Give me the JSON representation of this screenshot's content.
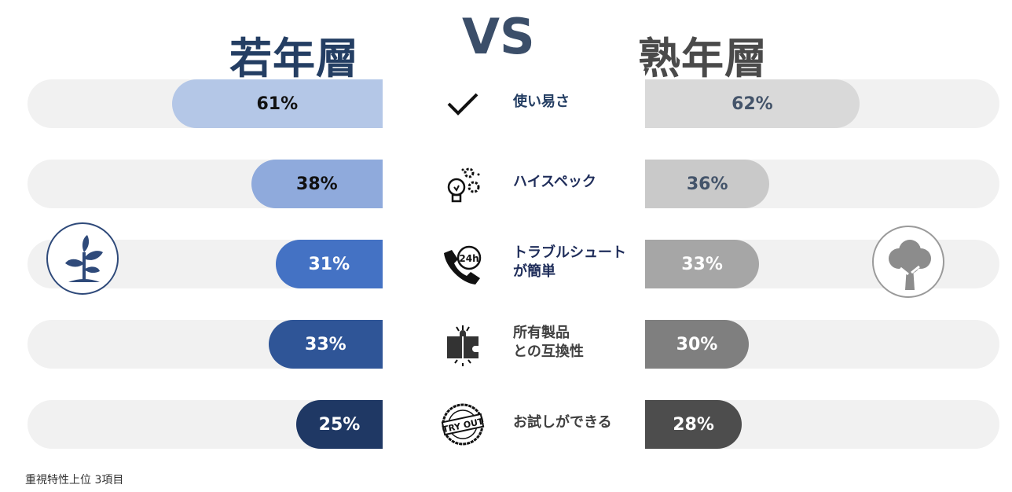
{
  "titles": {
    "young": "若年層",
    "vs": "VS",
    "senior": "熟年層"
  },
  "footnote": "重視特性上位 3項目",
  "chart_data": {
    "type": "bar",
    "categories": [
      "使い易さ",
      "ハイスペック",
      "トラブルシュート\nが簡単",
      "所有製品\nとの互換性",
      "お試しができる"
    ],
    "series": [
      {
        "name": "若年層",
        "values": [
          61,
          38,
          31,
          33,
          25
        ],
        "labels": [
          "61%",
          "38%",
          "31%",
          "33%",
          "25%"
        ],
        "colors": [
          "#b4c7e7",
          "#8faadc",
          "#4472c4",
          "#2f5597",
          "#1f3864"
        ],
        "text_colors": [
          "#111111",
          "#111111",
          "#ffffff",
          "#ffffff",
          "#ffffff"
        ]
      },
      {
        "name": "熟年層",
        "values": [
          62,
          36,
          33,
          30,
          28
        ],
        "labels": [
          "62%",
          "36%",
          "33%",
          "30%",
          "28%"
        ],
        "colors": [
          "#d9d9d9",
          "#c9c9c9",
          "#a6a6a6",
          "#7f7f7f",
          "#4d4d4d"
        ],
        "text_colors": [
          "#44546a",
          "#44546a",
          "#ffffff",
          "#ffffff",
          "#ffffff"
        ]
      }
    ],
    "label_colors": [
      "#243e63",
      "#1f2d5a",
      "#1f2d5a",
      "#404040",
      "#404040"
    ],
    "icons": [
      "checkmark-icon",
      "lightbulb-gears-icon",
      "phone-24h-icon",
      "puzzle-icon",
      "try-out-stamp-icon"
    ],
    "orientation": "horizontal-butterfly",
    "xlim": [
      0,
      100
    ]
  }
}
